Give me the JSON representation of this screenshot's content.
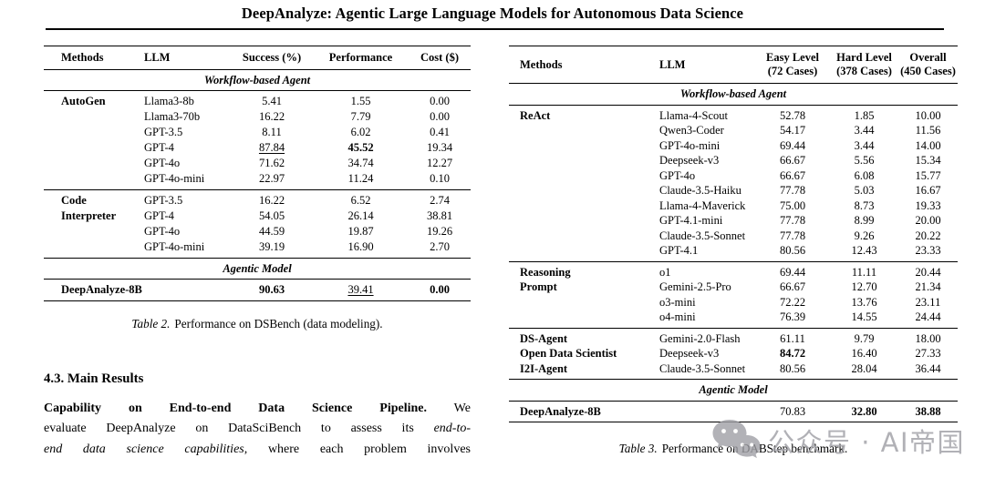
{
  "title": "DeepAnalyze: Agentic Large Language Models for Autonomous Data Science",
  "table2": {
    "headers": [
      "Methods",
      "LLM",
      "Success (%)",
      "Performance",
      "Cost ($)"
    ],
    "sections": [
      {
        "label": "Workflow-based Agent",
        "groups": [
          {
            "method": "AutoGen",
            "rows": [
              {
                "llm": "Llama3-8b",
                "vals": [
                  "5.41",
                  "1.55",
                  "0.00"
                ]
              },
              {
                "llm": "Llama3-70b",
                "vals": [
                  "16.22",
                  "7.79",
                  "0.00"
                ]
              },
              {
                "llm": "GPT-3.5",
                "vals": [
                  "8.11",
                  "6.02",
                  "0.41"
                ]
              },
              {
                "llm": "GPT-4",
                "vals": [
                  "87.84",
                  "45.52",
                  "19.34"
                ],
                "st": [
                  "u",
                  "b",
                  ""
                ]
              },
              {
                "llm": "GPT-4o",
                "vals": [
                  "71.62",
                  "34.74",
                  "12.27"
                ]
              },
              {
                "llm": "GPT-4o-mini",
                "vals": [
                  "22.97",
                  "11.24",
                  "0.10"
                ]
              }
            ]
          },
          {
            "method": "Code\nInterpreter",
            "rows": [
              {
                "llm": "GPT-3.5",
                "vals": [
                  "16.22",
                  "6.52",
                  "2.74"
                ]
              },
              {
                "llm": "GPT-4",
                "vals": [
                  "54.05",
                  "26.14",
                  "38.81"
                ]
              },
              {
                "llm": "GPT-4o",
                "vals": [
                  "44.59",
                  "19.87",
                  "19.26"
                ]
              },
              {
                "llm": "GPT-4o-mini",
                "vals": [
                  "39.19",
                  "16.90",
                  "2.70"
                ]
              }
            ]
          }
        ]
      },
      {
        "label": "Agentic Model",
        "groups": [
          {
            "method": "DeepAnalyze-8B",
            "rows": [
              {
                "llm": "",
                "vals": [
                  "90.63",
                  "39.41",
                  "0.00"
                ],
                "st": [
                  "b",
                  "u",
                  "b"
                ]
              }
            ]
          }
        ]
      }
    ],
    "caption": {
      "label": "Table 2.",
      "text": "Performance on DSBench (data modeling)."
    }
  },
  "table3": {
    "headers": [
      "Methods",
      "LLM",
      "Easy Level\n(72 Cases)",
      "Hard Level\n(378 Cases)",
      "Overall\n(450 Cases)"
    ],
    "sections": [
      {
        "label": "Workflow-based Agent",
        "groups": [
          {
            "method": "ReAct",
            "rows": [
              {
                "llm": "Llama-4-Scout",
                "vals": [
                  "52.78",
                  "1.85",
                  "10.00"
                ]
              },
              {
                "llm": "Qwen3-Coder",
                "vals": [
                  "54.17",
                  "3.44",
                  "11.56"
                ]
              },
              {
                "llm": "GPT-4o-mini",
                "vals": [
                  "69.44",
                  "3.44",
                  "14.00"
                ]
              },
              {
                "llm": "Deepseek-v3",
                "vals": [
                  "66.67",
                  "5.56",
                  "15.34"
                ]
              },
              {
                "llm": "GPT-4o",
                "vals": [
                  "66.67",
                  "6.08",
                  "15.77"
                ]
              },
              {
                "llm": "Claude-3.5-Haiku",
                "vals": [
                  "77.78",
                  "5.03",
                  "16.67"
                ]
              },
              {
                "llm": "Llama-4-Maverick",
                "vals": [
                  "75.00",
                  "8.73",
                  "19.33"
                ]
              },
              {
                "llm": "GPT-4.1-mini",
                "vals": [
                  "77.78",
                  "8.99",
                  "20.00"
                ]
              },
              {
                "llm": "Claude-3.5-Sonnet",
                "vals": [
                  "77.78",
                  "9.26",
                  "20.22"
                ]
              },
              {
                "llm": "GPT-4.1",
                "vals": [
                  "80.56",
                  "12.43",
                  "23.33"
                ]
              }
            ]
          },
          {
            "method": "Reasoning\nPrompt",
            "rows": [
              {
                "llm": "o1",
                "vals": [
                  "69.44",
                  "11.11",
                  "20.44"
                ]
              },
              {
                "llm": "Gemini-2.5-Pro",
                "vals": [
                  "66.67",
                  "12.70",
                  "21.34"
                ]
              },
              {
                "llm": "o3-mini",
                "vals": [
                  "72.22",
                  "13.76",
                  "23.11"
                ]
              },
              {
                "llm": "o4-mini",
                "vals": [
                  "76.39",
                  "14.55",
                  "24.44"
                ]
              }
            ]
          },
          {
            "rows": [
              {
                "method": "DS-Agent",
                "llm": "Gemini-2.0-Flash",
                "vals": [
                  "61.11",
                  "9.79",
                  "18.00"
                ]
              },
              {
                "method": "Open Data Scientist",
                "llm": "Deepseek-v3",
                "vals": [
                  "84.72",
                  "16.40",
                  "27.33"
                ],
                "st": [
                  "b",
                  "",
                  ""
                ]
              },
              {
                "method": "I2I-Agent",
                "llm": "Claude-3.5-Sonnet",
                "vals": [
                  "80.56",
                  "28.04",
                  "36.44"
                ]
              }
            ]
          }
        ]
      },
      {
        "label": "Agentic Model",
        "groups": [
          {
            "method": "DeepAnalyze-8B",
            "rows": [
              {
                "llm": "",
                "vals": [
                  "70.83",
                  "32.80",
                  "38.88"
                ],
                "st": [
                  "",
                  "b",
                  "b"
                ]
              }
            ]
          }
        ]
      }
    ],
    "caption": {
      "label": "Table 3.",
      "text": "Performance on DABStep benchmark."
    }
  },
  "main_heading": "4.3. Main Results",
  "paragraph_lines": [
    [
      {
        "t": "Capability on End-to-end Data Science Pipeline.",
        "s": "b"
      },
      {
        "t": " We",
        "s": ""
      }
    ],
    [
      {
        "t": "evaluate DeepAnalyze on DataSciBench to assess its ",
        "s": ""
      },
      {
        "t": "end-to-",
        "s": "i"
      }
    ],
    [
      {
        "t": "end data science capabilities",
        "s": "i"
      },
      {
        "t": ", where each problem involves",
        "s": ""
      }
    ]
  ],
  "watermark": {
    "text": "公众号 · AI帝国",
    "icon": "wechat-icon",
    "color": "#a4a4aa"
  }
}
